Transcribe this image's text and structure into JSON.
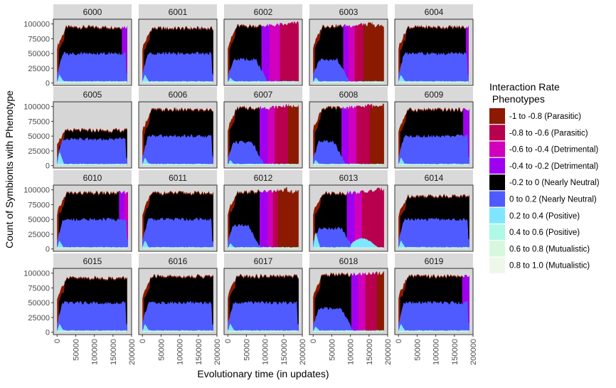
{
  "chart_data": {
    "type": "area",
    "facet_ids": [
      "6000",
      "6001",
      "6002",
      "6003",
      "6004",
      "6005",
      "6006",
      "6007",
      "6008",
      "6009",
      "6010",
      "6011",
      "6012",
      "6013",
      "6014",
      "6015",
      "6016",
      "6017",
      "6018",
      "6019"
    ],
    "xlabel": "Evolutionary time (in updates)",
    "ylabel": "Count of Symbionts with Phenotype",
    "x_ticks": [
      "0",
      "50000",
      "100000",
      "150000",
      "200000"
    ],
    "y_ticks": [
      "0",
      "25000",
      "50000",
      "75000",
      "100000"
    ],
    "xlim": [
      -10000,
      200000
    ],
    "ylim": [
      -4000,
      108000
    ],
    "grid": false,
    "legend_position": "right",
    "legend": {
      "title_line1": "Interaction Rate",
      "title_line2": " Phenotypes",
      "entries": [
        {
          "label": "-1 to -0.8 (Parasitic)",
          "color": "#8B1A00"
        },
        {
          "label": "-0.8 to -0.6 (Parasitic)",
          "color": "#B8004F"
        },
        {
          "label": "-0.6 to -0.4 (Detrimental)",
          "color": "#D000BC"
        },
        {
          "label": "-0.4 to -0.2 (Detrimental)",
          "color": "#A000F0"
        },
        {
          "label": "-0.2 to 0 (Nearly Neutral)",
          "color": "#000000"
        },
        {
          "label": "0 to 0.2 (Nearly Neutral)",
          "color": "#4F5BFF"
        },
        {
          "label": "0.2 to 0.4 (Positive)",
          "color": "#7FE6FF"
        },
        {
          "label": "0.4 to 0.6 (Positive)",
          "color": "#B0F8E8"
        },
        {
          "label": "0.6 to 0.8 (Mutualistic)",
          "color": "#D6F8DC"
        },
        {
          "label": "0.8 to 1.0 (Mutualistic)",
          "color": "#EDF8EA"
        }
      ]
    },
    "series_note_order": [
      "mutualistic_base",
      "positive",
      "nearly_neutral_pos",
      "nearly_neutral_neg",
      "detrimental_and_parasitic_bands"
    ],
    "panels": [
      {
        "id": "6000",
        "total": 95000,
        "blue": 50000,
        "cyan_early": 15000,
        "end": 188000,
        "bands": [
          [
            172000,
            188000,
            "#A000F0"
          ]
        ]
      },
      {
        "id": "6001",
        "total": 93000,
        "blue": 50000,
        "cyan_early": 15000,
        "end": 190000,
        "bands": []
      },
      {
        "id": "6002",
        "total": 97000,
        "blue": 40000,
        "cyan_early": 10000,
        "end": 190000,
        "blue_end": 110000,
        "bands": [
          [
            90000,
            120000,
            "#A000F0"
          ],
          [
            110000,
            150000,
            "#D000BC"
          ],
          [
            140000,
            190000,
            "#B8004F"
          ]
        ]
      },
      {
        "id": "6003",
        "total": 97000,
        "blue": 40000,
        "cyan_early": 10000,
        "end": 190000,
        "blue_end": 100000,
        "bands": [
          [
            80000,
            100000,
            "#A000F0"
          ],
          [
            95000,
            115000,
            "#D000BC"
          ],
          [
            110000,
            140000,
            "#B8004F"
          ],
          [
            135000,
            160000,
            "#8B1A00"
          ]
        ]
      },
      {
        "id": "6004",
        "total": 95000,
        "blue": 50000,
        "cyan_early": 15000,
        "end": 188000,
        "bands": [
          [
            180000,
            188000,
            "#A000F0"
          ]
        ]
      },
      {
        "id": "6005",
        "total": 60000,
        "blue": 45000,
        "cyan_early": 25000,
        "end": 188000,
        "bands": []
      },
      {
        "id": "6006",
        "total": 95000,
        "blue": 50000,
        "cyan_early": 15000,
        "end": 190000,
        "bands": []
      },
      {
        "id": "6007",
        "total": 98000,
        "blue": 40000,
        "cyan_early": 10000,
        "end": 190000,
        "blue_end": 100000,
        "bands": [
          [
            85000,
            110000,
            "#A000F0"
          ],
          [
            105000,
            130000,
            "#D000BC"
          ],
          [
            125000,
            165000,
            "#B8004F"
          ],
          [
            160000,
            190000,
            "#8B1A00"
          ]
        ]
      },
      {
        "id": "6008",
        "total": 98000,
        "blue": 40000,
        "cyan_early": 10000,
        "end": 190000,
        "blue_end": 90000,
        "bands": [
          [
            75000,
            100000,
            "#A000F0"
          ],
          [
            95000,
            120000,
            "#D000BC"
          ],
          [
            115000,
            160000,
            "#B8004F"
          ],
          [
            150000,
            190000,
            "#8B1A00"
          ]
        ]
      },
      {
        "id": "6009",
        "total": 95000,
        "blue": 50000,
        "cyan_early": 15000,
        "end": 190000,
        "bands": [
          [
            172000,
            190000,
            "#A000F0"
          ]
        ]
      },
      {
        "id": "6010",
        "total": 95000,
        "blue": 50000,
        "cyan_early": 15000,
        "end": 190000,
        "bands": [
          [
            165000,
            190000,
            "#A000F0"
          ],
          [
            180000,
            190000,
            "#D000BC"
          ]
        ]
      },
      {
        "id": "6011",
        "total": 95000,
        "blue": 50000,
        "cyan_early": 15000,
        "end": 190000,
        "bands": []
      },
      {
        "id": "6012",
        "total": 97000,
        "blue": 40000,
        "cyan_early": 10000,
        "end": 190000,
        "blue_end": 90000,
        "bands": [
          [
            85000,
            110000,
            "#A000F0"
          ],
          [
            105000,
            125000,
            "#D000BC"
          ],
          [
            120000,
            140000,
            "#B8004F"
          ],
          [
            135000,
            160000,
            "#8B1A00"
          ]
        ]
      },
      {
        "id": "6013",
        "total": 95000,
        "blue": 35000,
        "cyan_early": 30000,
        "end": 190000,
        "blue_end": 110000,
        "bands": [
          [
            90000,
            115000,
            "#A000F0"
          ],
          [
            110000,
            140000,
            "#D000BC"
          ],
          [
            130000,
            190000,
            "#B8004F"
          ]
        ]
      },
      {
        "id": "6014",
        "total": 90000,
        "blue": 50000,
        "cyan_early": 15000,
        "end": 190000,
        "bands": []
      },
      {
        "id": "6015",
        "total": 92000,
        "blue": 50000,
        "cyan_early": 15000,
        "end": 188000,
        "bands": []
      },
      {
        "id": "6016",
        "total": 95000,
        "blue": 50000,
        "cyan_early": 15000,
        "end": 190000,
        "bands": []
      },
      {
        "id": "6017",
        "total": 95000,
        "blue": 50000,
        "cyan_early": 15000,
        "end": 190000,
        "bands": []
      },
      {
        "id": "6018",
        "total": 98000,
        "blue": 40000,
        "cyan_early": 10000,
        "end": 190000,
        "blue_end": 110000,
        "bands": [
          [
            100000,
            125000,
            "#A000F0"
          ],
          [
            120000,
            145000,
            "#D000BC"
          ],
          [
            140000,
            175000,
            "#B8004F"
          ],
          [
            170000,
            190000,
            "#8B1A00"
          ]
        ]
      },
      {
        "id": "6019",
        "total": 95000,
        "blue": 50000,
        "cyan_early": 15000,
        "end": 190000,
        "bands": [
          [
            170000,
            190000,
            "#A000F0"
          ]
        ]
      }
    ]
  },
  "colors": {
    "panel_bg": "#D6D6D6",
    "strip_bg": "#D9D9D9",
    "axis_text": "#4D4D4D"
  }
}
